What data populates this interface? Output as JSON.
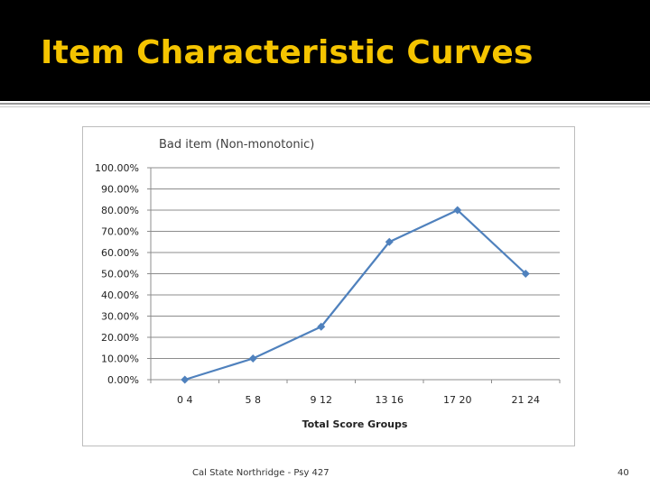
{
  "slide": {
    "title": "Item Characteristic Curves",
    "footer": "Cal State Northridge - Psy 427",
    "page_number": "40"
  },
  "colors": {
    "title": "#f5c400",
    "series": "#4f81bd",
    "background_bar": "#000000"
  },
  "chart_data": {
    "type": "line",
    "title": "Bad item (Non-monotonic)",
    "xlabel": "Total Score Groups",
    "ylabel": "",
    "categories": [
      "0 4",
      "5 8",
      "9 12",
      "13 16",
      "17 20",
      "21 24"
    ],
    "series": [
      {
        "values": [
          0,
          10,
          25,
          65,
          80,
          50
        ]
      }
    ],
    "ylim": [
      0,
      100
    ],
    "yticks": [
      0,
      10,
      20,
      30,
      40,
      50,
      60,
      70,
      80,
      90,
      100
    ],
    "ytick_labels": [
      "0.00%",
      "10.00%",
      "20.00%",
      "30.00%",
      "40.00%",
      "50.00%",
      "60.00%",
      "70.00%",
      "80.00%",
      "90.00%",
      "100.00%"
    ],
    "grid": true,
    "marker": "diamond",
    "legend": "none"
  }
}
